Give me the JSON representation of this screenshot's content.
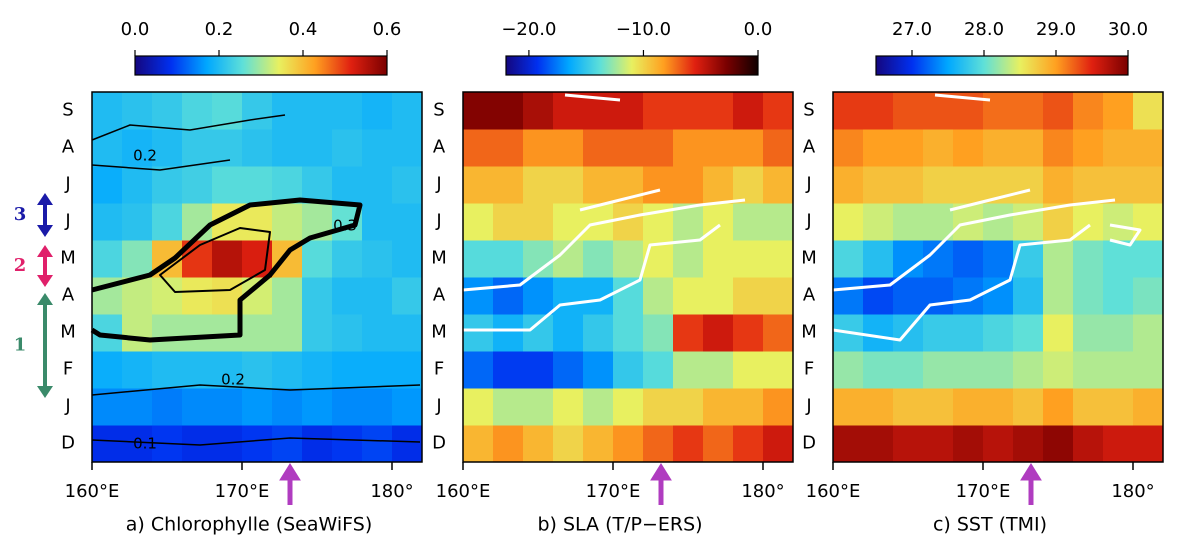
{
  "chart_data": [
    {
      "type": "heatmap",
      "title": "a) Chlorophylle (SeaWiFS)",
      "categories": [
        "D",
        "J",
        "F",
        "M",
        "A",
        "M",
        "J",
        "J",
        "A",
        "S"
      ],
      "x": [
        160,
        162,
        164,
        166,
        168,
        170,
        172,
        174,
        176,
        178,
        180
      ],
      "xlim": [
        160,
        182
      ],
      "xticks": [
        {
          "value": 160,
          "label": "160°E"
        },
        {
          "value": 170,
          "label": "170°E"
        },
        {
          "value": 180,
          "label": "180°"
        }
      ],
      "clim": [
        0,
        0.6
      ],
      "cticks": [
        {
          "value": 0,
          "label": "0.0"
        },
        {
          "value": 0.2,
          "label": "0.2"
        },
        {
          "value": 0.4,
          "label": "0.4"
        },
        {
          "value": 0.6,
          "label": "0.6"
        }
      ],
      "colormap": [
        "#14067f",
        "#0030f0",
        "#00a8ff",
        "#5fe0d8",
        "#e8f060",
        "#ffa020",
        "#e02010",
        "#7a0000"
      ],
      "values": [
        [
          0.08,
          0.08,
          0.09,
          0.08,
          0.08,
          0.09,
          0.1,
          0.08,
          0.09,
          0.1,
          0.08
        ],
        [
          0.15,
          0.15,
          0.14,
          0.15,
          0.15,
          0.16,
          0.15,
          0.16,
          0.15,
          0.15,
          0.16
        ],
        [
          0.18,
          0.19,
          0.2,
          0.2,
          0.2,
          0.21,
          0.2,
          0.19,
          0.18,
          0.18,
          0.18
        ],
        [
          0.24,
          0.32,
          0.3,
          0.3,
          0.3,
          0.3,
          0.3,
          0.22,
          0.21,
          0.2,
          0.2
        ],
        [
          0.3,
          0.32,
          0.33,
          0.35,
          0.36,
          0.33,
          0.3,
          0.22,
          0.2,
          0.2,
          0.22
        ],
        [
          0.24,
          0.28,
          0.4,
          0.5,
          0.55,
          0.52,
          0.4,
          0.25,
          0.22,
          0.21,
          0.2
        ],
        [
          0.2,
          0.21,
          0.24,
          0.3,
          0.35,
          0.35,
          0.32,
          0.3,
          0.26,
          0.2,
          0.2
        ],
        [
          0.18,
          0.2,
          0.22,
          0.23,
          0.25,
          0.25,
          0.24,
          0.22,
          0.2,
          0.2,
          0.21
        ],
        [
          0.2,
          0.19,
          0.2,
          0.22,
          0.22,
          0.21,
          0.2,
          0.2,
          0.21,
          0.2,
          0.2
        ],
        [
          0.2,
          0.21,
          0.22,
          0.24,
          0.25,
          0.22,
          0.2,
          0.2,
          0.2,
          0.19,
          0.2
        ]
      ],
      "annotations": [
        "0.2",
        "0.3",
        "0.2",
        "0.1"
      ],
      "phases": [
        {
          "label": "3",
          "color": "#1a1aa8"
        },
        {
          "label": "2",
          "color": "#e0206a"
        },
        {
          "label": "1",
          "color": "#3a8a6a"
        }
      ]
    },
    {
      "type": "heatmap",
      "title": "b) SLA (T/P−ERS)",
      "categories": [
        "D",
        "J",
        "F",
        "M",
        "A",
        "M",
        "J",
        "J",
        "A",
        "S"
      ],
      "x": [
        160,
        162,
        164,
        166,
        168,
        170,
        172,
        174,
        176,
        178,
        180
      ],
      "xlim": [
        160,
        182
      ],
      "xticks": [
        {
          "value": 160,
          "label": "160°E"
        },
        {
          "value": 170,
          "label": "170°E"
        },
        {
          "value": 180,
          "label": "180°"
        }
      ],
      "clim": [
        -22,
        0
      ],
      "cticks": [
        {
          "value": -20,
          "label": "−20.0"
        },
        {
          "value": -10,
          "label": "−10.0"
        },
        {
          "value": 0,
          "label": "0.0"
        }
      ],
      "colormap": [
        "#14067f",
        "#0030f0",
        "#00a8ff",
        "#5fe0d8",
        "#e8f060",
        "#ffa020",
        "#e02010",
        "#7a0000",
        "#100000"
      ],
      "values": [
        [
          -9,
          -8,
          -9,
          -10,
          -9,
          -8,
          -7,
          -6,
          -7,
          -6,
          -5
        ],
        [
          -11,
          -12,
          -12,
          -11,
          -12,
          -11,
          -10,
          -10,
          -9,
          -9,
          -8
        ],
        [
          -18,
          -19,
          -19,
          -18,
          -17,
          -15,
          -14,
          -12,
          -12,
          -11,
          -11
        ],
        [
          -15,
          -16,
          -15,
          -16,
          -15,
          -14,
          -13,
          -6,
          -5,
          -6,
          -7
        ],
        [
          -17,
          -18,
          -17,
          -16,
          -16,
          -14,
          -12,
          -11,
          -11,
          -10,
          -10
        ],
        [
          -14,
          -14,
          -13,
          -12,
          -13,
          -12,
          -11,
          -12,
          -11,
          -11,
          -11
        ],
        [
          -11,
          -10,
          -10,
          -11,
          -11,
          -10,
          -11,
          -12,
          -11,
          -12,
          -12
        ],
        [
          -9,
          -9,
          -10,
          -10,
          -9,
          -9,
          -8,
          -8,
          -9,
          -10,
          -9
        ],
        [
          -7,
          -7,
          -8,
          -8,
          -7,
          -7,
          -7,
          -8,
          -8,
          -8,
          -7
        ],
        [
          -3,
          -3,
          -4,
          -5,
          -5,
          -5,
          -6,
          -6,
          -6,
          -5,
          -6
        ]
      ]
    },
    {
      "type": "heatmap",
      "title": "c) SST (TMI)",
      "categories": [
        "D",
        "J",
        "F",
        "M",
        "A",
        "M",
        "J",
        "J",
        "A",
        "S"
      ],
      "x": [
        160,
        162,
        164,
        166,
        168,
        170,
        172,
        174,
        176,
        178,
        180
      ],
      "xlim": [
        160,
        182
      ],
      "xticks": [
        {
          "value": 160,
          "label": "160°E"
        },
        {
          "value": 170,
          "label": "170°E"
        },
        {
          "value": 180,
          "label": "180°"
        }
      ],
      "clim": [
        26.5,
        30
      ],
      "cticks": [
        {
          "value": 27,
          "label": "27.0"
        },
        {
          "value": 28,
          "label": "28.0"
        },
        {
          "value": 29,
          "label": "29.0"
        },
        {
          "value": 30,
          "label": "30.0"
        }
      ],
      "colormap": [
        "#14067f",
        "#0030f0",
        "#00a8ff",
        "#5fe0d8",
        "#e8f060",
        "#ffa020",
        "#e02010",
        "#7a0000"
      ],
      "values": [
        [
          29.8,
          29.8,
          29.7,
          29.7,
          29.8,
          29.7,
          29.8,
          29.9,
          29.7,
          29.6,
          29.6
        ],
        [
          28.9,
          28.9,
          28.8,
          28.8,
          28.9,
          28.9,
          28.8,
          29.0,
          28.8,
          28.8,
          28.9
        ],
        [
          28.2,
          28.1,
          28.1,
          28.2,
          28.2,
          28.2,
          28.3,
          28.4,
          28.3,
          28.3,
          28.3
        ],
        [
          27.8,
          27.6,
          27.7,
          27.8,
          27.8,
          27.9,
          28.0,
          28.5,
          28.2,
          28.2,
          28.3
        ],
        [
          27.3,
          27.1,
          27.2,
          27.2,
          27.3,
          27.4,
          27.7,
          28.3,
          28.1,
          28.0,
          28.1
        ],
        [
          27.9,
          27.7,
          27.4,
          27.3,
          27.2,
          27.3,
          27.8,
          28.3,
          28.1,
          28.0,
          28.0
        ],
        [
          28.5,
          28.4,
          28.3,
          28.3,
          28.4,
          28.3,
          28.4,
          28.7,
          28.5,
          28.4,
          28.5
        ],
        [
          28.9,
          28.8,
          28.8,
          28.7,
          28.7,
          28.7,
          28.7,
          28.9,
          28.8,
          28.8,
          28.8
        ],
        [
          29.1,
          29.0,
          29.0,
          28.9,
          29.0,
          28.9,
          28.9,
          29.1,
          29.0,
          28.9,
          28.9
        ],
        [
          29.4,
          29.4,
          29.3,
          29.3,
          29.3,
          29.2,
          29.2,
          29.3,
          29.1,
          29.0,
          28.6
        ]
      ]
    }
  ]
}
